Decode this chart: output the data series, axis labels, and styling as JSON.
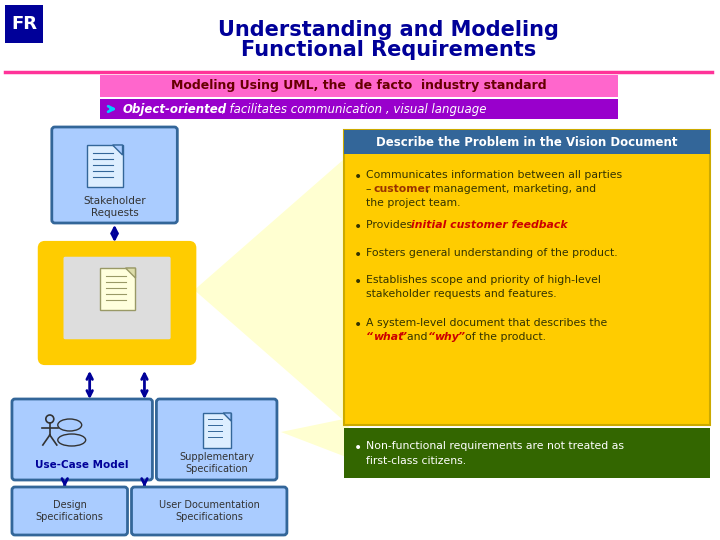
{
  "title_line1": "Understanding and Modeling",
  "title_line2": "Functional Requirements",
  "title_color": "#000099",
  "fr_label": "FR",
  "fr_bg": "#000099",
  "fr_text_color": "#ffffff",
  "subtitle_bg": "#ff66cc",
  "subtitle_text_color": "#660000",
  "bullet2_bg": "#9900cc",
  "bullet2_text_color": "#ffffff",
  "divider_color": "#ff3399",
  "box_stakeholder_bg": "#aaccff",
  "box_stakeholder_border": "#336699",
  "box_vision_border": "#ffcc00",
  "box_vision_outer_bg": "#ffcc00",
  "box_usecase_bg": "#aaccff",
  "box_usecase_border": "#336699",
  "box_supp_bg": "#aaccff",
  "box_supp_border": "#336699",
  "box_design_bg": "#aaccff",
  "box_design_border": "#336699",
  "box_userdoc_bg": "#aaccff",
  "box_userdoc_border": "#336699",
  "vision_panel_bg": "#ffcc00",
  "vision_panel_header_bg": "#336699",
  "vision_panel_header_text": "#ffffff",
  "vision_panel_text_color": "#333300",
  "green_panel_bg": "#336600",
  "green_panel_text": "#ffffff",
  "arrow_color": "#000099"
}
